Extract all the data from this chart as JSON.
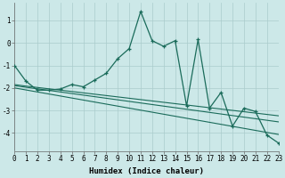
{
  "xlabel": "Humidex (Indice chaleur)",
  "background_color": "#cce8e8",
  "grid_color": "#aacccc",
  "line_color": "#1a6b5a",
  "x_data": [
    0,
    1,
    2,
    3,
    4,
    5,
    6,
    7,
    8,
    9,
    10,
    11,
    12,
    13,
    14,
    15,
    16,
    17,
    18,
    19,
    20,
    21,
    22,
    23
  ],
  "y_main": [
    -1.0,
    -1.7,
    -2.1,
    -2.1,
    -2.05,
    -1.85,
    -1.95,
    -1.65,
    -1.35,
    -0.7,
    -0.25,
    1.4,
    0.1,
    -0.15,
    0.1,
    -2.8,
    0.15,
    -2.9,
    -2.2,
    -3.7,
    -2.9,
    -3.05,
    -4.1,
    -4.45
  ],
  "y_trend1": [
    -1.85,
    -1.92,
    -1.98,
    -2.04,
    -2.1,
    -2.16,
    -2.22,
    -2.28,
    -2.34,
    -2.4,
    -2.46,
    -2.52,
    -2.58,
    -2.64,
    -2.7,
    -2.76,
    -2.82,
    -2.88,
    -2.94,
    -3.0,
    -3.06,
    -3.12,
    -3.18,
    -3.24
  ],
  "y_trend2": [
    -1.9,
    -1.97,
    -2.04,
    -2.11,
    -2.18,
    -2.25,
    -2.32,
    -2.39,
    -2.46,
    -2.53,
    -2.6,
    -2.67,
    -2.74,
    -2.81,
    -2.88,
    -2.95,
    -3.02,
    -3.09,
    -3.16,
    -3.23,
    -3.3,
    -3.37,
    -3.44,
    -3.51
  ],
  "y_trend3": [
    -2.0,
    -2.09,
    -2.18,
    -2.27,
    -2.36,
    -2.45,
    -2.54,
    -2.63,
    -2.72,
    -2.81,
    -2.9,
    -2.99,
    -3.08,
    -3.17,
    -3.26,
    -3.35,
    -3.44,
    -3.53,
    -3.62,
    -3.71,
    -3.8,
    -3.89,
    -3.98,
    -4.07
  ],
  "xlim": [
    0,
    23
  ],
  "ylim": [
    -4.8,
    1.8
  ],
  "yticks": [
    -4,
    -3,
    -2,
    -1,
    0,
    1
  ],
  "xticks": [
    0,
    1,
    2,
    3,
    4,
    5,
    6,
    7,
    8,
    9,
    10,
    11,
    12,
    13,
    14,
    15,
    16,
    17,
    18,
    19,
    20,
    21,
    22,
    23
  ],
  "tick_fontsize": 5.5,
  "label_fontsize": 6.5
}
